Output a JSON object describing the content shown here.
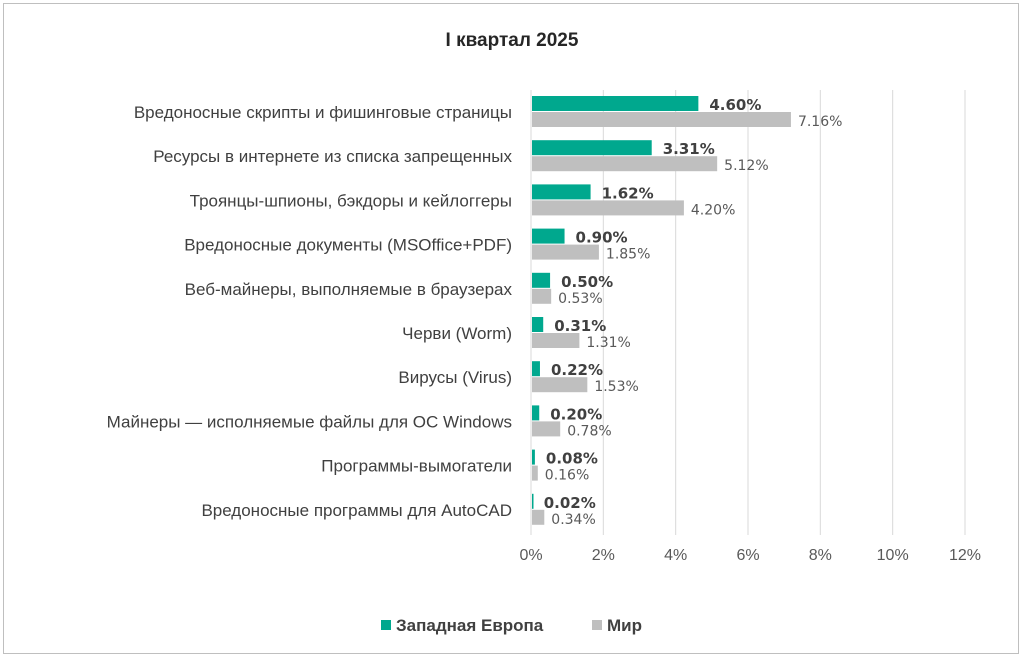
{
  "chart_data": {
    "type": "bar",
    "orientation": "horizontal",
    "title": "I квартал 2025",
    "categories": [
      "Вредоносные скрипты и фишинговые страницы",
      "Ресурсы в интернете из списка запрещенных",
      "Троянцы-шпионы, бэкдоры и кейлоггеры",
      "Вредоносные документы (MSOffice+PDF)",
      "Веб-майнеры, выполняемые в браузерах",
      "Черви (Worm)",
      "Вирусы (Virus)",
      "Майнеры — исполняемые файлы для ОС Windows",
      "Программы-вымогатели",
      "Вредоносные программы для AutoCAD"
    ],
    "series": [
      {
        "name": "Западная Европа",
        "color": "#00a88e",
        "values": [
          4.6,
          3.31,
          1.62,
          0.9,
          0.5,
          0.31,
          0.22,
          0.2,
          0.08,
          0.02
        ],
        "labels": [
          "4.60%",
          "3.31%",
          "1.62%",
          "0.90%",
          "0.50%",
          "0.31%",
          "0.22%",
          "0.20%",
          "0.08%",
          "0.02%"
        ]
      },
      {
        "name": "Мир",
        "color": "#bfbfbf",
        "values": [
          7.16,
          5.12,
          4.2,
          1.85,
          0.53,
          1.31,
          1.53,
          0.78,
          0.16,
          0.34
        ],
        "labels": [
          "7.16%",
          "5.12%",
          "4.20%",
          "1.85%",
          "0.53%",
          "1.31%",
          "1.53%",
          "0.78%",
          "0.16%",
          "0.34%"
        ]
      }
    ],
    "xlim": [
      0,
      12
    ],
    "xticks": [
      "0%",
      "2%",
      "4%",
      "6%",
      "8%",
      "10%",
      "12%"
    ],
    "grid": true,
    "legend_position": "bottom"
  }
}
